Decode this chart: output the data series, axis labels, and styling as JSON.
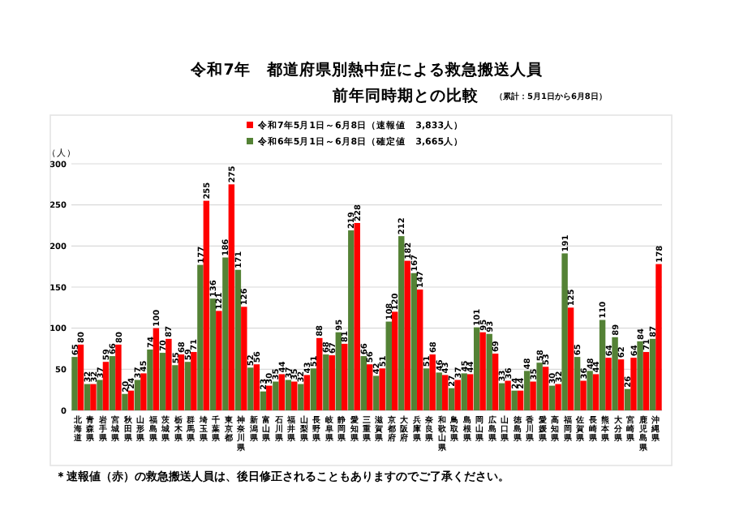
{
  "chart_data": {
    "type": "bar",
    "title": "令和7年　都道府県別熱中症による救急搬送人員",
    "subtitle": "前年同時期との比較",
    "annotations": [
      "（累計：5月1日から6月8日）",
      "＊速報値（赤）の救急搬送人員は、後日修正されることもありますのでご了承ください。"
    ],
    "ylabel": "（人）",
    "categories": [
      "北海道",
      "青森県",
      "岩手県",
      "宮城県",
      "秋田県",
      "山形県",
      "福島県",
      "茨城県",
      "栃木県",
      "群馬県",
      "埼玉県",
      "千葉県",
      "東京都",
      "神奈川県",
      "新潟県",
      "富山県",
      "石川県",
      "福井県",
      "山梨県",
      "長野県",
      "岐阜県",
      "静岡県",
      "愛知県",
      "三重県",
      "滋賀県",
      "京都府",
      "大阪府",
      "兵庫県",
      "奈良県",
      "和歌山県",
      "鳥取県",
      "島根県",
      "岡山県",
      "広島県",
      "山口県",
      "徳島県",
      "香川県",
      "愛媛県",
      "高知県",
      "福岡県",
      "佐賀県",
      "長崎県",
      "熊本県",
      "大分県",
      "宮崎県",
      "鹿児島県",
      "沖縄県"
    ],
    "series": [
      {
        "name": "令和6年5月1日～6月8日（確定値　3,665人）",
        "color": "#548235",
        "values": [
          65,
          32,
          37,
          66,
          20,
          37,
          74,
          70,
          55,
          59,
          177,
          136,
          186,
          171,
          52,
          23,
          35,
          37,
          32,
          51,
          68,
          95,
          219,
          66,
          42,
          108,
          212,
          167,
          51,
          46,
          27,
          45,
          101,
          93,
          33,
          24,
          48,
          58,
          30,
          191,
          65,
          48,
          110,
          89,
          26,
          84,
          87
        ]
      },
      {
        "name": "令和7年5月1日～6月8日（速報値　3,833人）",
        "color": "#ff0000",
        "values": [
          80,
          32,
          59,
          80,
          24,
          45,
          100,
          87,
          68,
          71,
          255,
          121,
          275,
          126,
          56,
          30,
          44,
          35,
          43,
          88,
          67,
          81,
          228,
          56,
          51,
          120,
          182,
          147,
          68,
          43,
          37,
          44,
          95,
          69,
          36,
          24,
          35,
          53,
          32,
          125,
          36,
          44,
          64,
          62,
          64,
          71,
          178
        ]
      }
    ],
    "ylim": [
      0,
      300
    ],
    "yticks": [
      0,
      50,
      100,
      150,
      200,
      250,
      300
    ],
    "grid": "y",
    "legend": "top",
    "data_labels": true
  }
}
